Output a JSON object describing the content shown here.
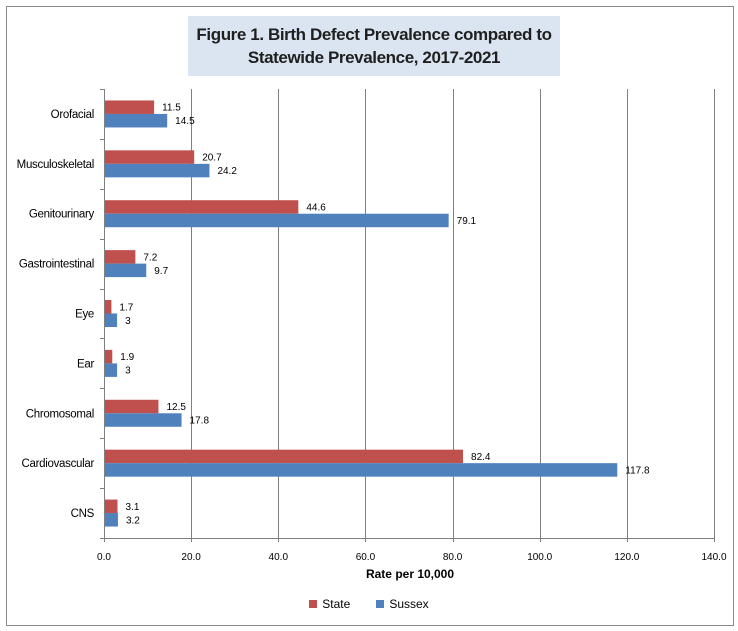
{
  "chart_data": {
    "type": "bar",
    "orientation": "horizontal",
    "title": "Figure 1. Birth Defect Prevalence compared to Statewide Prevalence, 2017-2021",
    "title_lines": [
      "Figure 1. Birth Defect Prevalence compared to",
      "Statewide Prevalence, 2017-2021"
    ],
    "xlabel": "Rate per 10,000",
    "ylabel": "",
    "xlim": [
      0,
      140
    ],
    "x_ticks": [
      "0.0",
      "20.0",
      "40.0",
      "60.0",
      "80.0",
      "100.0",
      "120.0",
      "140.0"
    ],
    "grid": "vertical",
    "legend_position": "bottom",
    "categories": [
      "Orofacial",
      "Musculoskeletal",
      "Genitourinary",
      "Gastrointestinal",
      "Eye",
      "Ear",
      "Chromosomal",
      "Cardiovascular",
      "CNS"
    ],
    "series": [
      {
        "name": "State",
        "color": "#c0504d",
        "values": [
          11.5,
          20.7,
          44.6,
          7.2,
          1.7,
          1.9,
          12.5,
          82.4,
          3.1
        ],
        "labels": [
          "11.5",
          "20.7",
          "44.6",
          "7.2",
          "1.7",
          "1.9",
          "12.5",
          "82.4",
          "3.1"
        ]
      },
      {
        "name": "Sussex",
        "color": "#4f81bd",
        "values": [
          14.5,
          24.2,
          79.1,
          9.7,
          3,
          3,
          17.8,
          117.8,
          3.2
        ],
        "labels": [
          "14.5",
          "24.2",
          "79.1",
          "9.7",
          "3",
          "3",
          "17.8",
          "117.8",
          "3.2"
        ]
      }
    ]
  }
}
